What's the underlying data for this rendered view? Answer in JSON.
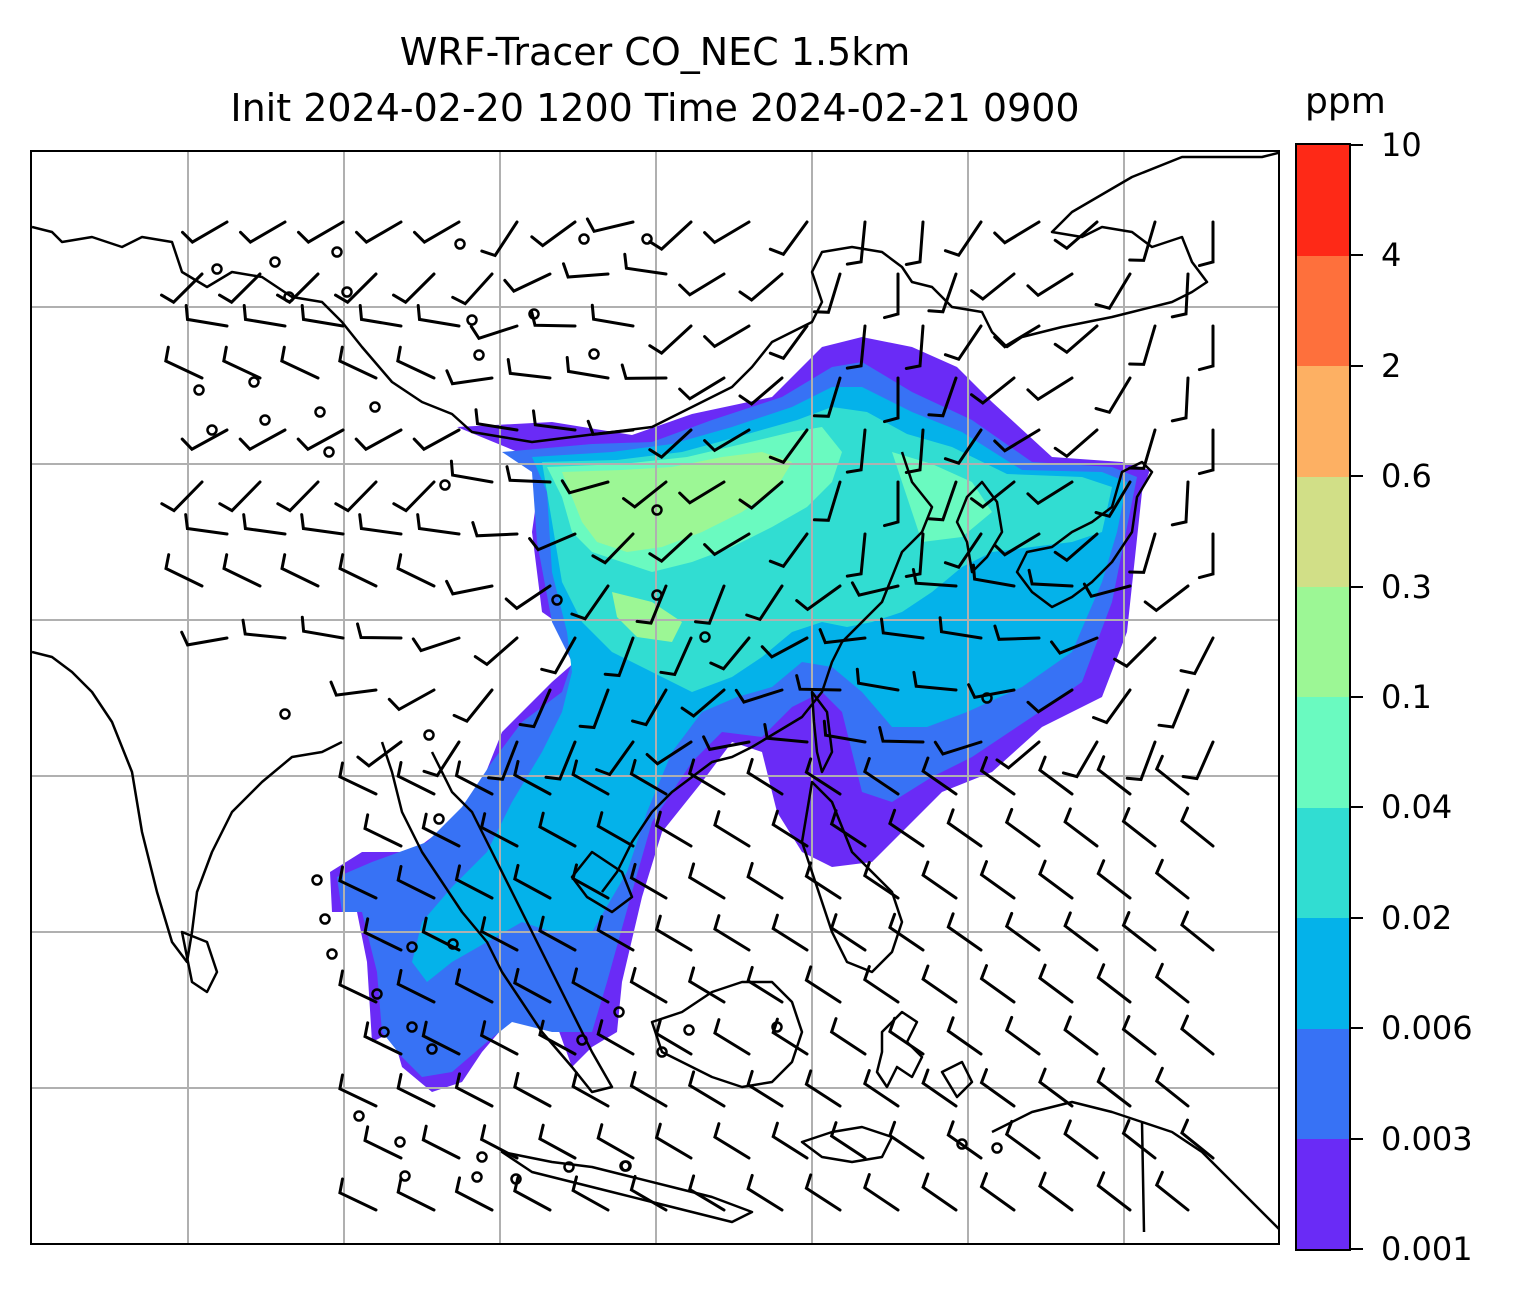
{
  "title": {
    "line1": "WRF-Tracer CO_NEC 1.5km",
    "line2": "Init 2024-02-20 1200 Time 2024-02-21 0900"
  },
  "colorbar": {
    "unit": "ppm",
    "levels": [
      "0.001",
      "0.003",
      "0.006",
      "0.02",
      "0.04",
      "0.1",
      "0.3",
      "0.6",
      "2",
      "4",
      "10"
    ],
    "colors": [
      "#6a2bf6",
      "#3772f5",
      "#04b2ea",
      "#31ddd2",
      "#6afac0",
      "#9cf795",
      "#d1df87",
      "#fdb063",
      "#fe703c",
      "#fe2917"
    ]
  },
  "map": {
    "land_line_color": "#000000",
    "grid_color": "#b0b0b0"
  }
}
